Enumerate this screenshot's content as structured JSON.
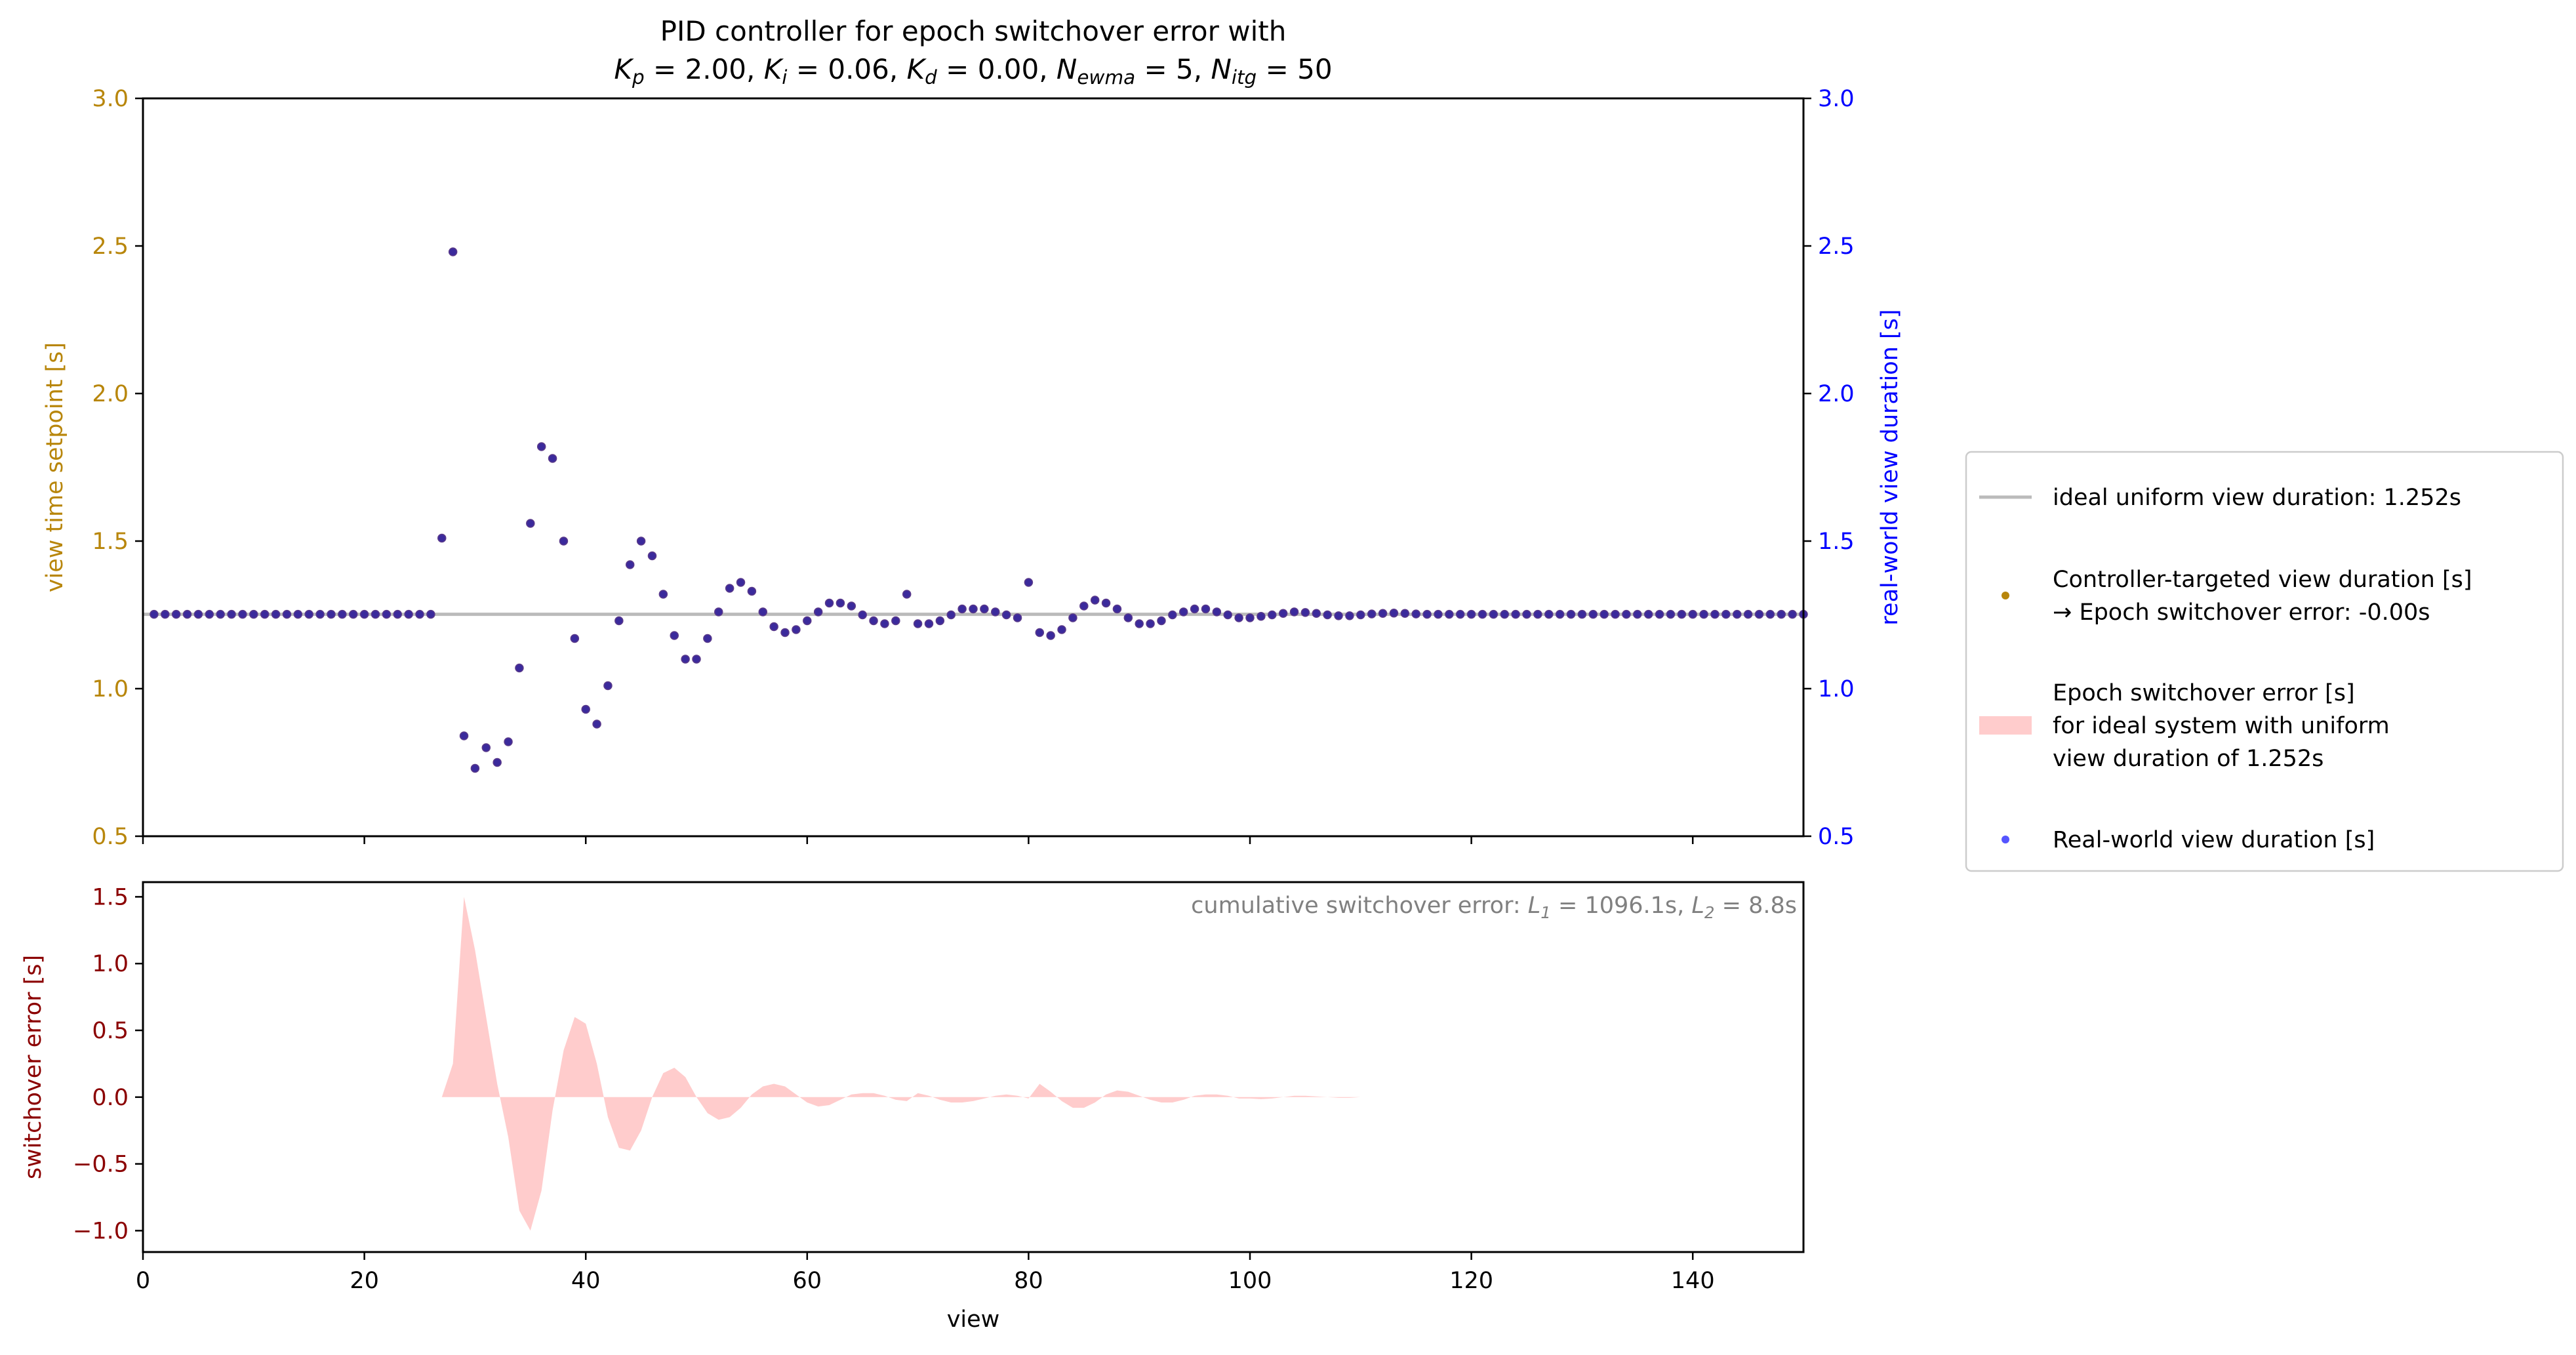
{
  "chart_data": [
    {
      "type": "scatter",
      "title_line1": "PID controller for epoch switchover error with",
      "title_params": [
        {
          "sym": "K",
          "sub": "p",
          "val": "2.00"
        },
        {
          "sym": "K",
          "sub": "i",
          "val": "0.06"
        },
        {
          "sym": "K",
          "sub": "d",
          "val": "0.00"
        },
        {
          "sym": "N",
          "sub": "ewma",
          "val": "5"
        },
        {
          "sym": "N",
          "sub": "itg",
          "val": "50"
        }
      ],
      "ylabel_left": "view time setpoint [s]",
      "ylabel_right": "real-world view duration [s]",
      "xlim": [
        0,
        150
      ],
      "ylim": [
        0.5,
        3.0
      ],
      "yticks": [
        "0.5",
        "1.0",
        "1.5",
        "2.0",
        "2.5",
        "3.0"
      ],
      "xticks": [
        0,
        20,
        40,
        60,
        80,
        100,
        120,
        140
      ],
      "ideal_value": 1.252,
      "x_start": 1,
      "values": [
        1.252,
        1.252,
        1.252,
        1.252,
        1.252,
        1.252,
        1.252,
        1.252,
        1.252,
        1.252,
        1.252,
        1.252,
        1.252,
        1.252,
        1.252,
        1.252,
        1.252,
        1.252,
        1.252,
        1.252,
        1.252,
        1.252,
        1.252,
        1.252,
        1.252,
        1.252,
        1.51,
        2.48,
        0.84,
        0.73,
        0.8,
        0.75,
        0.82,
        1.07,
        1.56,
        1.82,
        1.78,
        1.5,
        1.17,
        0.93,
        0.88,
        1.01,
        1.23,
        1.42,
        1.5,
        1.45,
        1.32,
        1.18,
        1.1,
        1.1,
        1.17,
        1.26,
        1.34,
        1.36,
        1.33,
        1.26,
        1.21,
        1.19,
        1.2,
        1.23,
        1.26,
        1.29,
        1.29,
        1.28,
        1.25,
        1.23,
        1.22,
        1.23,
        1.32,
        1.22,
        1.22,
        1.23,
        1.25,
        1.27,
        1.27,
        1.27,
        1.26,
        1.25,
        1.24,
        1.36,
        1.19,
        1.18,
        1.2,
        1.24,
        1.28,
        1.3,
        1.29,
        1.27,
        1.24,
        1.22,
        1.22,
        1.23,
        1.25,
        1.26,
        1.27,
        1.27,
        1.26,
        1.25,
        1.24,
        1.24,
        1.245,
        1.25,
        1.255,
        1.26,
        1.258,
        1.255,
        1.25,
        1.247,
        1.247,
        1.25,
        1.253,
        1.255,
        1.256,
        1.255,
        1.253,
        1.252,
        1.252,
        1.252,
        1.252,
        1.252,
        1.252,
        1.252,
        1.252,
        1.252,
        1.252,
        1.252,
        1.252,
        1.252,
        1.252,
        1.252,
        1.252,
        1.252,
        1.252,
        1.252,
        1.252,
        1.252,
        1.252,
        1.252,
        1.252,
        1.252,
        1.252,
        1.252,
        1.252,
        1.252,
        1.252,
        1.252,
        1.252,
        1.252,
        1.252,
        1.252
      ],
      "colors": {
        "left_axis": "#b8860b",
        "right_axis": "#0000ff",
        "points": "#3b2a9c",
        "ideal_line": "#bbbbbb"
      }
    },
    {
      "type": "area",
      "ylabel": "switchover error [s]",
      "xlabel": "view",
      "xlim": [
        0,
        150
      ],
      "ylim": [
        -1.16,
        1.61
      ],
      "yticks": [
        "-1.0",
        "-0.5",
        "0.0",
        "0.5",
        "1.0",
        "1.5"
      ],
      "xticks": [
        0,
        20,
        40,
        60,
        80,
        100,
        120,
        140
      ],
      "annotation_prefix": "cumulative switchover error: ",
      "annotation_L1": {
        "sym": "L",
        "sub": "1",
        "val": "1096.1s"
      },
      "annotation_L2": {
        "sym": "L",
        "sub": "2",
        "val": "8.8s"
      },
      "x_start": 27,
      "values": [
        0,
        0.25,
        1.5,
        1.1,
        0.6,
        0.1,
        -0.3,
        -0.85,
        -1.0,
        -0.7,
        -0.1,
        0.35,
        0.6,
        0.55,
        0.25,
        -0.15,
        -0.38,
        -0.4,
        -0.25,
        0.0,
        0.18,
        0.22,
        0.15,
        0.0,
        -0.12,
        -0.17,
        -0.15,
        -0.08,
        0.02,
        0.08,
        0.1,
        0.08,
        0.02,
        -0.04,
        -0.07,
        -0.06,
        -0.02,
        0.02,
        0.03,
        0.03,
        0.01,
        -0.02,
        -0.03,
        0.03,
        0.01,
        -0.02,
        -0.04,
        -0.04,
        -0.03,
        -0.01,
        0.01,
        0.02,
        0.01,
        -0.01,
        0.1,
        0.04,
        -0.03,
        -0.08,
        -0.08,
        -0.04,
        0.02,
        0.05,
        0.04,
        0.01,
        -0.02,
        -0.04,
        -0.04,
        -0.02,
        0.01,
        0.02,
        0.02,
        0.01,
        -0.01,
        -0.01,
        -0.015,
        -0.01,
        0.0,
        0.01,
        0.01,
        0.005,
        0,
        -0.005,
        -0.005,
        0,
        0,
        0,
        0,
        0,
        0,
        0,
        0,
        0,
        0,
        0,
        0,
        0,
        0,
        0,
        0,
        0,
        0,
        0,
        0,
        0
      ],
      "colors": {
        "ylabel": "#8b0000",
        "fill": "#ffcccc",
        "annotation": "#808080"
      }
    }
  ],
  "legend": {
    "placement": "right",
    "items": [
      {
        "kind": "line",
        "lines": [
          "ideal uniform view duration: 1.252s"
        ]
      },
      {
        "kind": "dot-gold",
        "lines": [
          "Controller-targeted view duration [s]",
          "→ Epoch switchover error: -0.00s"
        ]
      },
      {
        "kind": "patch",
        "lines": [
          "Epoch switchover error [s]",
          "for ideal system with uniform",
          "view duration of 1.252s"
        ]
      },
      {
        "kind": "dot-blue",
        "lines": [
          "Real-world view duration [s]"
        ]
      }
    ]
  }
}
